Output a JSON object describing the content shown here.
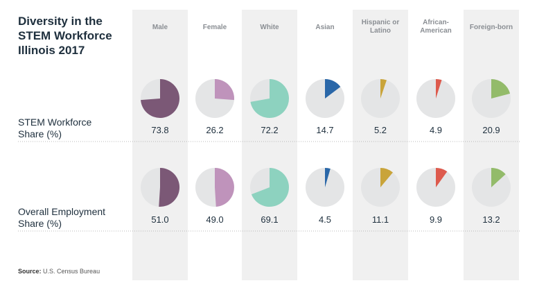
{
  "title": "Diversity in the\nSTEM Workforce\nIllinois 2017",
  "source_label": "Source:",
  "source_text": "U.S. Census Bureau",
  "colors": {
    "pie_bg": "#e4e5e6",
    "band": "#f0f0f0",
    "divider": "#b8b8b8"
  },
  "chart_data": {
    "type": "pie",
    "unit": "%",
    "categories": [
      "Male",
      "Female",
      "White",
      "Asian",
      "Hispanic or\nLatino",
      "African-\nAmerican",
      "Foreign-born"
    ],
    "category_colors": [
      "#7b5876",
      "#bf93bb",
      "#8dd2bf",
      "#2a67a8",
      "#c9a43a",
      "#dd5a4d",
      "#93bb6a"
    ],
    "series": [
      {
        "name": "STEM Workforce\nShare (%)",
        "values": [
          "73.8",
          "26.2",
          "72.2",
          "14.7",
          "5.2",
          "4.9",
          "20.9"
        ]
      },
      {
        "name": "Overall Employment\nShare (%)",
        "values": [
          "51.0",
          "49.0",
          "69.1",
          "4.5",
          "11.1",
          "9.9",
          "13.2"
        ]
      }
    ]
  }
}
